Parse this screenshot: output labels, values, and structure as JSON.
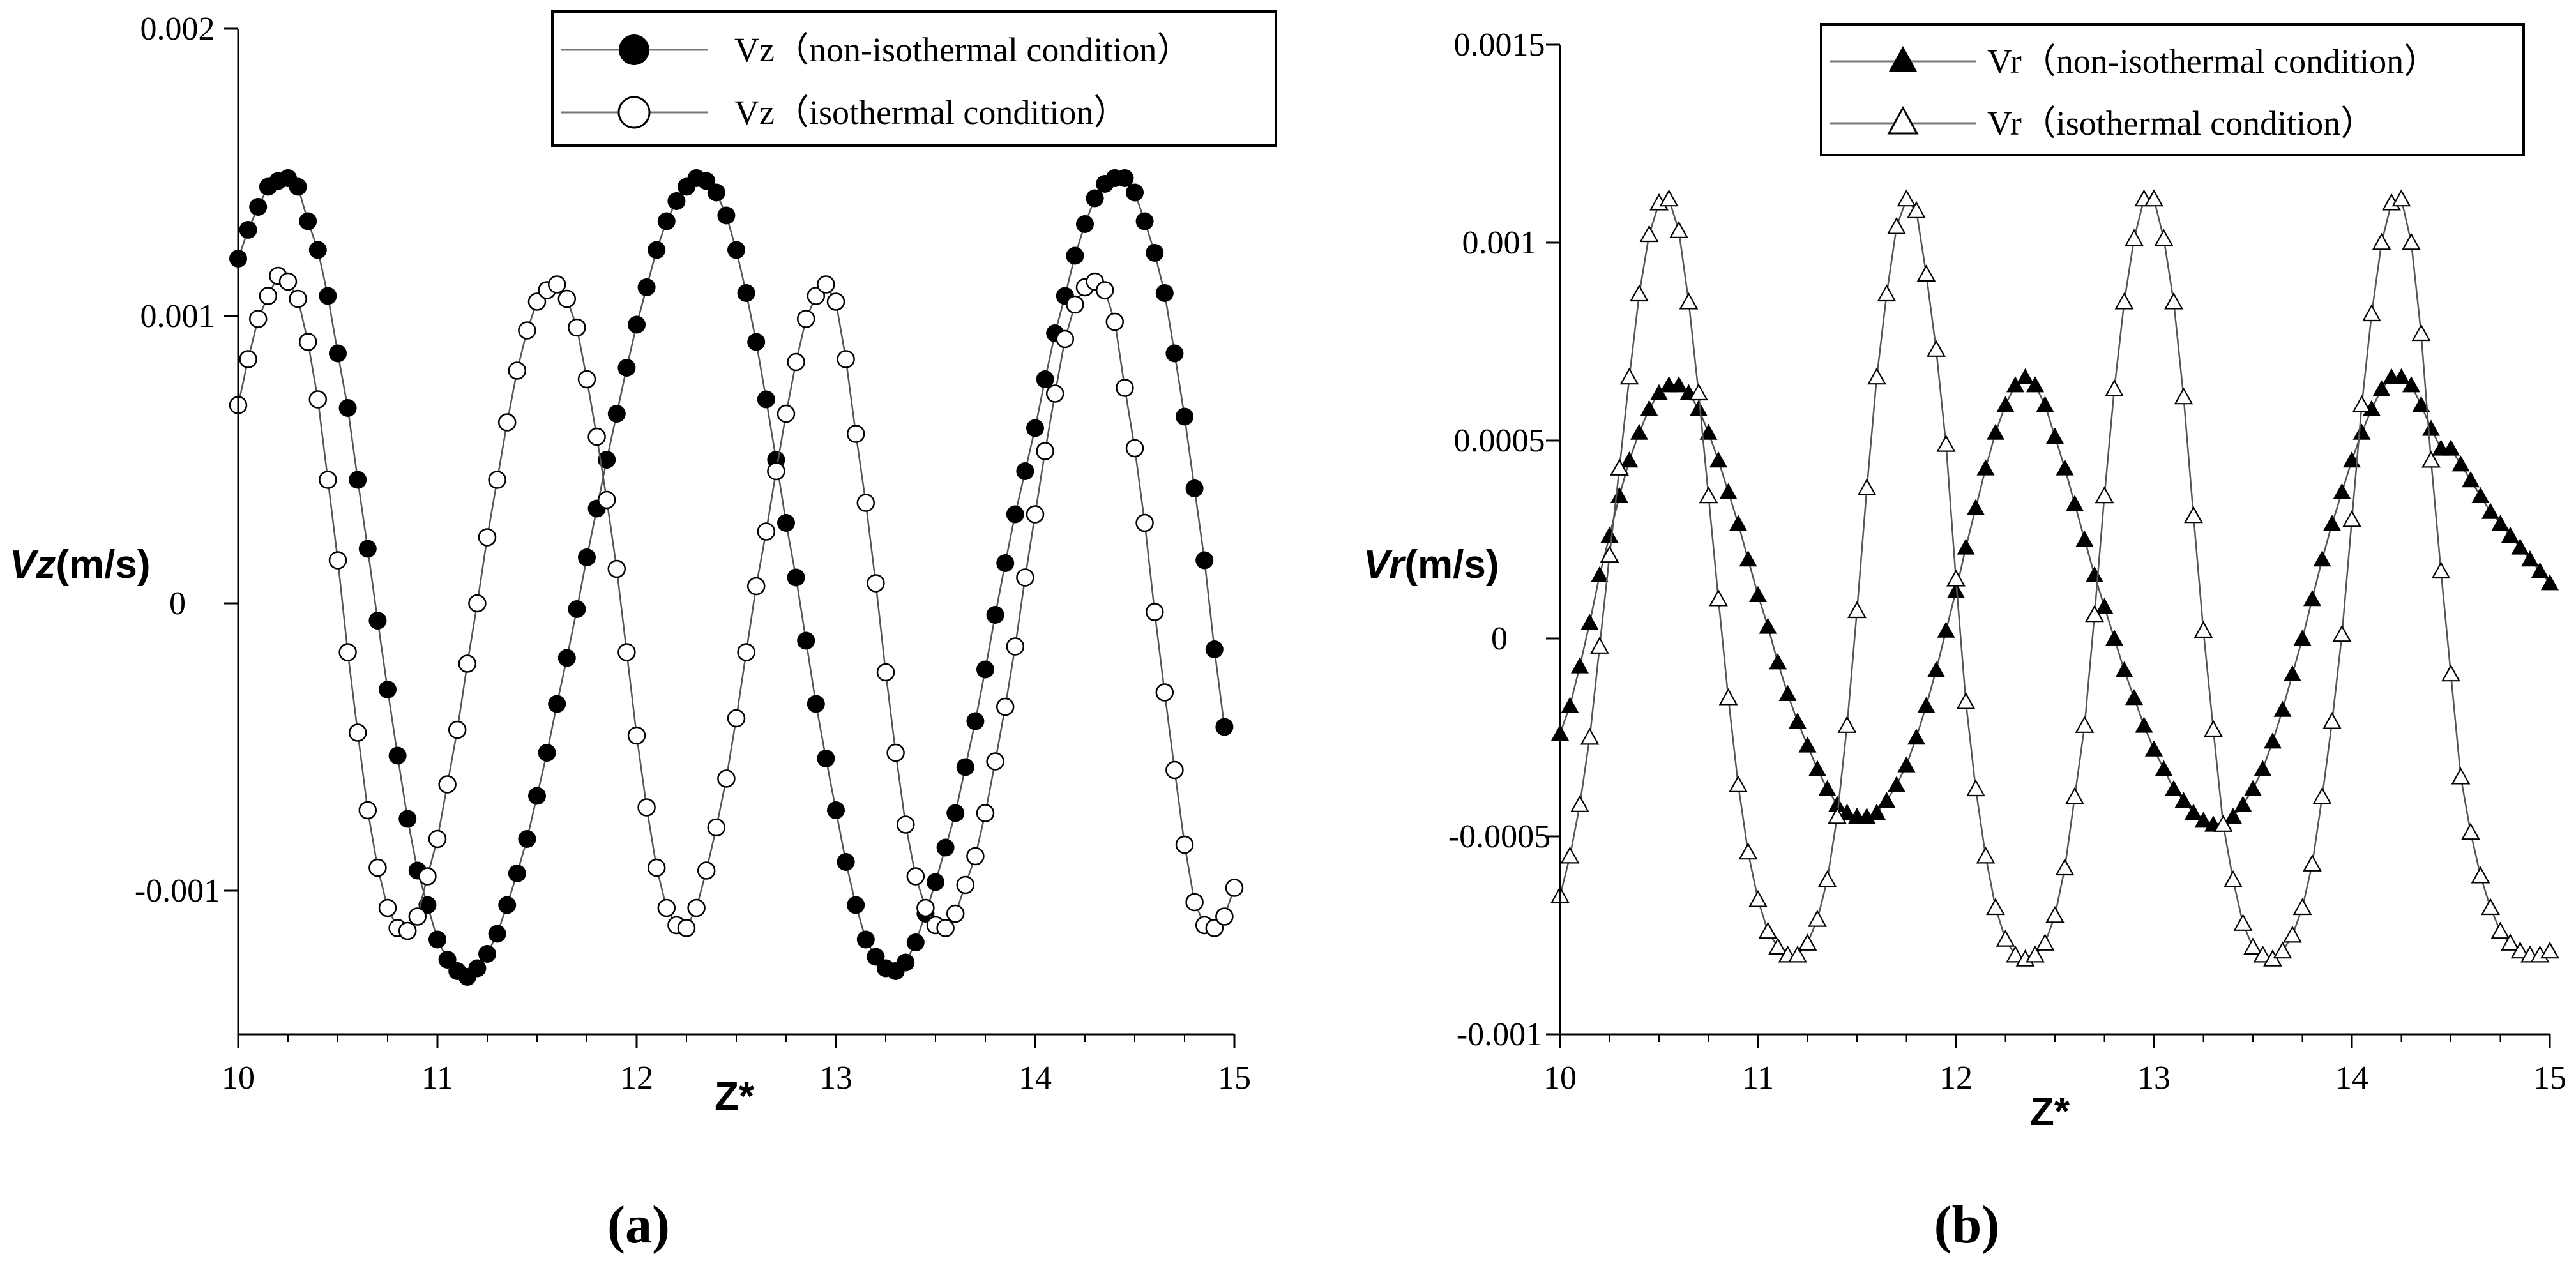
{
  "chart_data": [
    {
      "type": "line",
      "panel_label": "(a)",
      "xlabel": "Z*",
      "ylabel_var": "Vz",
      "ylabel_unit": "(m/s)",
      "xlim": [
        10,
        15
      ],
      "ylim": [
        -0.0015,
        0.002
      ],
      "xticks": [
        10,
        11,
        12,
        13,
        14,
        15
      ],
      "xtick_labels": [
        "10",
        "11",
        "12",
        "13",
        "14",
        "15"
      ],
      "yticks": [
        0.002,
        0.001,
        0,
        -0.001
      ],
      "ytick_labels": [
        "0.002",
        "0.001",
        "0",
        "-0.001"
      ],
      "legend_position": "top-right",
      "series": [
        {
          "name": "Vz（non-isothermal condition）",
          "marker": "filled-circle",
          "x": [
            10.0,
            10.05,
            10.1,
            10.15,
            10.2,
            10.25,
            10.3,
            10.35,
            10.4,
            10.45,
            10.5,
            10.55,
            10.6,
            10.65,
            10.7,
            10.75,
            10.8,
            10.85,
            10.9,
            10.95,
            11.0,
            11.05,
            11.1,
            11.15,
            11.2,
            11.25,
            11.3,
            11.35,
            11.4,
            11.45,
            11.5,
            11.55,
            11.6,
            11.65,
            11.7,
            11.75,
            11.8,
            11.85,
            11.9,
            11.95,
            12.0,
            12.05,
            12.1,
            12.15,
            12.2,
            12.25,
            12.3,
            12.35,
            12.4,
            12.45,
            12.5,
            12.55,
            12.6,
            12.65,
            12.7,
            12.75,
            12.8,
            12.85,
            12.9,
            12.95,
            13.0,
            13.05,
            13.1,
            13.15,
            13.2,
            13.25,
            13.3,
            13.35,
            13.4,
            13.45,
            13.5,
            13.55,
            13.6,
            13.65,
            13.7,
            13.75,
            13.8,
            13.85,
            13.9,
            13.95,
            14.0,
            14.05,
            14.1,
            14.15,
            14.2,
            14.25,
            14.3,
            14.35,
            14.4,
            14.45,
            14.5,
            14.55,
            14.6,
            14.65,
            14.7,
            14.75,
            14.8,
            14.85,
            14.9,
            14.95
          ],
          "y": [
            0.0012,
            0.0013,
            0.00138,
            0.00145,
            0.00147,
            0.00148,
            0.00145,
            0.00133,
            0.00123,
            0.00107,
            0.00087,
            0.00068,
            0.00043,
            0.00019,
            -6e-05,
            -0.0003,
            -0.00053,
            -0.00075,
            -0.00093,
            -0.00105,
            -0.00117,
            -0.00124,
            -0.00128,
            -0.0013,
            -0.00127,
            -0.00122,
            -0.00115,
            -0.00105,
            -0.00094,
            -0.00082,
            -0.00067,
            -0.00052,
            -0.00035,
            -0.00019,
            -2e-05,
            0.00016,
            0.00033,
            0.0005,
            0.00066,
            0.00082,
            0.00097,
            0.0011,
            0.00123,
            0.00133,
            0.0014,
            0.00145,
            0.00148,
            0.00147,
            0.00143,
            0.00135,
            0.00123,
            0.00108,
            0.00091,
            0.00071,
            0.0005,
            0.00028,
            9e-05,
            -0.00013,
            -0.00035,
            -0.00054,
            -0.00072,
            -0.0009,
            -0.00105,
            -0.00117,
            -0.00123,
            -0.00127,
            -0.00128,
            -0.00125,
            -0.00118,
            -0.00108,
            -0.00097,
            -0.00085,
            -0.00073,
            -0.00057,
            -0.00041,
            -0.00023,
            -4e-05,
            0.00014,
            0.00031,
            0.00046,
            0.00061,
            0.00078,
            0.00094,
            0.00107,
            0.00121,
            0.00132,
            0.00141,
            0.00146,
            0.00148,
            0.00148,
            0.00143,
            0.00133,
            0.00122,
            0.00108,
            0.00087,
            0.00065,
            0.0004,
            0.00015,
            -0.00016,
            -0.00043
          ]
        },
        {
          "name": "Vz（isothermal condition）",
          "marker": "open-circle",
          "x": [
            10.0,
            10.05,
            10.1,
            10.15,
            10.2,
            10.25,
            10.3,
            10.35,
            10.4,
            10.45,
            10.5,
            10.55,
            10.6,
            10.65,
            10.7,
            10.75,
            10.8,
            10.85,
            10.9,
            10.95,
            11.0,
            11.05,
            11.1,
            11.15,
            11.2,
            11.25,
            11.3,
            11.35,
            11.4,
            11.45,
            11.5,
            11.55,
            11.6,
            11.65,
            11.7,
            11.75,
            11.8,
            11.85,
            11.9,
            11.95,
            12.0,
            12.05,
            12.1,
            12.15,
            12.2,
            12.25,
            12.3,
            12.35,
            12.4,
            12.45,
            12.5,
            12.55,
            12.6,
            12.65,
            12.7,
            12.75,
            12.8,
            12.85,
            12.9,
            12.95,
            13.0,
            13.05,
            13.1,
            13.15,
            13.2,
            13.25,
            13.3,
            13.35,
            13.4,
            13.45,
            13.5,
            13.55,
            13.6,
            13.65,
            13.7,
            13.75,
            13.8,
            13.85,
            13.9,
            13.95,
            14.0,
            14.05,
            14.1,
            14.15,
            14.2,
            14.25,
            14.3,
            14.35,
            14.4,
            14.45,
            14.5,
            14.55,
            14.6,
            14.65,
            14.7,
            14.75,
            14.8,
            14.85,
            14.9,
            14.95,
            15.0
          ],
          "y": [
            0.00069,
            0.00085,
            0.00099,
            0.00107,
            0.00114,
            0.00112,
            0.00106,
            0.00091,
            0.00071,
            0.00043,
            0.00015,
            -0.00017,
            -0.00045,
            -0.00072,
            -0.00092,
            -0.00106,
            -0.00113,
            -0.00114,
            -0.00109,
            -0.00095,
            -0.00082,
            -0.00063,
            -0.00044,
            -0.00021,
            0.0,
            0.00023,
            0.00043,
            0.00063,
            0.00081,
            0.00095,
            0.00105,
            0.00109,
            0.00111,
            0.00106,
            0.00096,
            0.00078,
            0.00058,
            0.00036,
            0.00012,
            -0.00017,
            -0.00046,
            -0.00071,
            -0.00092,
            -0.00106,
            -0.00112,
            -0.00113,
            -0.00106,
            -0.00093,
            -0.00078,
            -0.00061,
            -0.0004,
            -0.00017,
            6e-05,
            0.00025,
            0.00046,
            0.00066,
            0.00084,
            0.00099,
            0.00107,
            0.00111,
            0.00105,
            0.00085,
            0.00059,
            0.00035,
            7e-05,
            -0.00024,
            -0.00052,
            -0.00077,
            -0.00095,
            -0.00106,
            -0.00112,
            -0.00113,
            -0.00108,
            -0.00098,
            -0.00088,
            -0.00073,
            -0.00055,
            -0.00036,
            -0.00015,
            9e-05,
            0.00031,
            0.00053,
            0.00073,
            0.00092,
            0.00104,
            0.0011,
            0.00112,
            0.00109,
            0.00098,
            0.00075,
            0.00054,
            0.00028,
            -3e-05,
            -0.00031,
            -0.00058,
            -0.00084,
            -0.00104,
            -0.00112,
            -0.00113,
            -0.00109,
            -0.00099
          ]
        }
      ]
    },
    {
      "type": "line",
      "panel_label": "(b)",
      "xlabel": "Z*",
      "ylabel_var": "Vr",
      "ylabel_unit": "(m/s)",
      "xlim": [
        10,
        15
      ],
      "ylim": [
        -0.001,
        0.0015
      ],
      "xticks": [
        10,
        11,
        12,
        13,
        14,
        15
      ],
      "xtick_labels": [
        "10",
        "11",
        "12",
        "13",
        "14",
        "15"
      ],
      "yticks": [
        0.0015,
        0.001,
        0.0005,
        0,
        -0.0005,
        -0.001
      ],
      "ytick_labels": [
        "0.0015",
        "0.001",
        "0.0005",
        "0",
        "-0.0005",
        "-0.001"
      ],
      "legend_position": "top-right",
      "series": [
        {
          "name": "Vr（non-isothermal condition）",
          "marker": "filled-triangle",
          "x": [
            10.0,
            10.05,
            10.1,
            10.15,
            10.2,
            10.25,
            10.3,
            10.35,
            10.4,
            10.45,
            10.5,
            10.55,
            10.6,
            10.65,
            10.7,
            10.75,
            10.8,
            10.85,
            10.9,
            10.95,
            11.0,
            11.05,
            11.1,
            11.15,
            11.2,
            11.25,
            11.3,
            11.35,
            11.4,
            11.45,
            11.5,
            11.55,
            11.6,
            11.65,
            11.7,
            11.75,
            11.8,
            11.85,
            11.9,
            11.95,
            12.0,
            12.05,
            12.1,
            12.15,
            12.2,
            12.25,
            12.3,
            12.35,
            12.4,
            12.45,
            12.5,
            12.55,
            12.6,
            12.65,
            12.7,
            12.75,
            12.8,
            12.85,
            12.9,
            12.95,
            13.0,
            13.05,
            13.1,
            13.15,
            13.2,
            13.25,
            13.3,
            13.35,
            13.4,
            13.45,
            13.5,
            13.55,
            13.6,
            13.65,
            13.7,
            13.75,
            13.8,
            13.85,
            13.9,
            13.95,
            14.0,
            14.05,
            14.1,
            14.15,
            14.2,
            14.25,
            14.3,
            14.35,
            14.4,
            14.45,
            14.5,
            14.55,
            14.6,
            14.65,
            14.7,
            14.75,
            14.8,
            14.85,
            14.9,
            14.95,
            15.0
          ],
          "y": [
            -0.00024,
            -0.00017,
            -7e-05,
            4e-05,
            0.00016,
            0.00026,
            0.00036,
            0.00045,
            0.00052,
            0.00058,
            0.00062,
            0.00064,
            0.00064,
            0.00062,
            0.00058,
            0.00052,
            0.00045,
            0.00037,
            0.00029,
            0.0002,
            0.00011,
            3e-05,
            -6e-05,
            -0.00014,
            -0.00021,
            -0.00027,
            -0.00033,
            -0.00038,
            -0.00042,
            -0.00044,
            -0.00045,
            -0.00045,
            -0.00044,
            -0.00041,
            -0.00037,
            -0.00032,
            -0.00025,
            -0.00017,
            -8e-05,
            2e-05,
            0.00012,
            0.00023,
            0.00033,
            0.00043,
            0.00052,
            0.00059,
            0.00064,
            0.00066,
            0.00064,
            0.00059,
            0.00051,
            0.00043,
            0.00034,
            0.00025,
            0.00016,
            8e-05,
            0.0,
            -8e-05,
            -0.00015,
            -0.00022,
            -0.00028,
            -0.00033,
            -0.00038,
            -0.00041,
            -0.00044,
            -0.00046,
            -0.00047,
            -0.00047,
            -0.00045,
            -0.00042,
            -0.00038,
            -0.00033,
            -0.00026,
            -0.00018,
            -9e-05,
            0.0,
            0.0001,
            0.0002,
            0.00029,
            0.00037,
            0.00045,
            0.00052,
            0.00058,
            0.00063,
            0.00066,
            0.00066,
            0.00064,
            0.00059,
            0.00053,
            0.00048,
            0.00048,
            0.00044,
            0.0004,
            0.00036,
            0.00032,
            0.00029,
            0.00026,
            0.00023,
            0.0002,
            0.00017,
            0.00014
          ],
          "x_used": 96
        },
        {
          "name": "Vr（isothermal condition）",
          "marker": "open-triangle",
          "x": [
            10.0,
            10.05,
            10.1,
            10.15,
            10.2,
            10.25,
            10.3,
            10.35,
            10.4,
            10.45,
            10.5,
            10.55,
            10.6,
            10.65,
            10.7,
            10.75,
            10.8,
            10.85,
            10.9,
            10.95,
            11.0,
            11.05,
            11.1,
            11.15,
            11.2,
            11.25,
            11.3,
            11.35,
            11.4,
            11.45,
            11.5,
            11.55,
            11.6,
            11.65,
            11.7,
            11.75,
            11.8,
            11.85,
            11.9,
            11.95,
            12.0,
            12.05,
            12.1,
            12.15,
            12.2,
            12.25,
            12.3,
            12.35,
            12.4,
            12.45,
            12.5,
            12.55,
            12.6,
            12.65,
            12.7,
            12.75,
            12.8,
            12.85,
            12.9,
            12.95,
            13.0,
            13.05,
            13.1,
            13.15,
            13.2,
            13.25,
            13.3,
            13.35,
            13.4,
            13.45,
            13.5,
            13.55,
            13.6,
            13.65,
            13.7,
            13.75,
            13.8,
            13.85,
            13.9,
            13.95,
            14.0,
            14.05,
            14.1,
            14.15,
            14.2,
            14.25,
            14.3,
            14.35,
            14.4,
            14.45,
            14.5,
            14.55,
            14.6,
            14.65,
            14.7,
            14.75,
            14.8,
            14.85,
            14.9,
            14.95,
            15.0
          ],
          "y": [
            -0.00065,
            -0.00055,
            -0.00042,
            -0.00025,
            -2e-05,
            0.00021,
            0.00043,
            0.00066,
            0.00087,
            0.00102,
            0.0011,
            0.00111,
            0.00103,
            0.00085,
            0.00062,
            0.00036,
            0.0001,
            -0.00015,
            -0.00037,
            -0.00054,
            -0.00066,
            -0.00074,
            -0.00078,
            -0.0008,
            -0.0008,
            -0.00077,
            -0.00071,
            -0.00061,
            -0.00045,
            -0.00022,
            7e-05,
            0.00038,
            0.00066,
            0.00087,
            0.00104,
            0.00111,
            0.00108,
            0.00092,
            0.00073,
            0.00049,
            0.00015,
            -0.00016,
            -0.00038,
            -0.00055,
            -0.00068,
            -0.00076,
            -0.0008,
            -0.00081,
            -0.0008,
            -0.00077,
            -0.0007,
            -0.00058,
            -0.0004,
            -0.00022,
            6e-05,
            0.00036,
            0.00063,
            0.00085,
            0.00101,
            0.00111,
            0.00111,
            0.00101,
            0.00085,
            0.00061,
            0.00031,
            2e-05,
            -0.00023,
            -0.00047,
            -0.00061,
            -0.00072,
            -0.00078,
            -0.0008,
            -0.00081,
            -0.00079,
            -0.00075,
            -0.00068,
            -0.00057,
            -0.0004,
            -0.00021,
            1e-05,
            0.0003,
            0.00059,
            0.00082,
            0.001,
            0.0011,
            0.00111,
            0.001,
            0.00077,
            0.00045,
            0.00017,
            -9e-05,
            -0.00035,
            -0.00049,
            -0.0006,
            -0.00068,
            -0.00074,
            -0.00077,
            -0.00079,
            -0.0008,
            -0.0008,
            -0.00079
          ]
        }
      ]
    }
  ]
}
